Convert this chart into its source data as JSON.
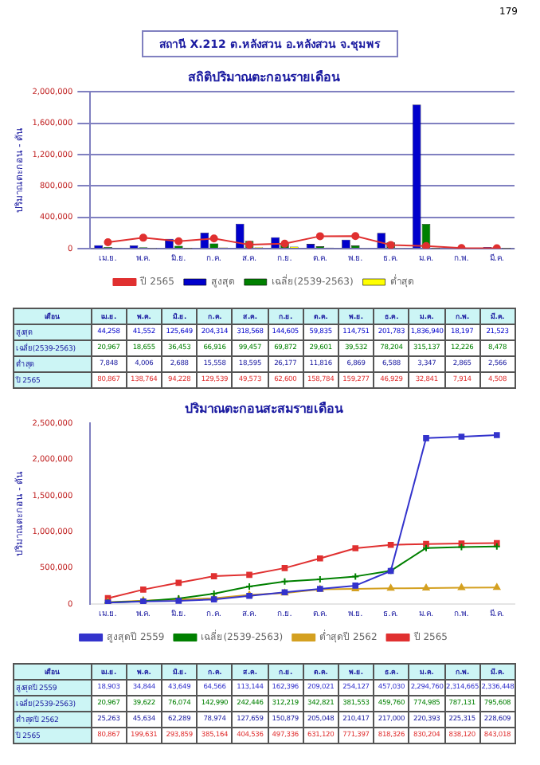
{
  "chart_data": [
    {
      "type": "bar",
      "title": "สถิติปริมาณตะกอนรายเดือน",
      "ylabel": "ปริมาณตะกอน - ตัน",
      "annotations": [
        "179",
        "สถานี X.212 ต.หลังสวน อ.หลังสวน จ.ชุมพร",
        "เดือน"
      ],
      "categories": [
        "เม.ย.",
        "พ.ค.",
        "มิ.ย.",
        "ก.ค.",
        "ส.ค.",
        "ก.ย.",
        "ต.ค.",
        "พ.ย.",
        "ธ.ค.",
        "ม.ค.",
        "ก.พ.",
        "มี.ค."
      ],
      "series": [
        {
          "name": "สูงสุด",
          "color": "#0000cc",
          "values": [
            44258,
            41552,
            125649,
            204314,
            318568,
            144605,
            59835,
            114751,
            201783,
            1836940,
            18197,
            21523
          ],
          "value_labels": [
            "44,258",
            "41,552",
            "125,649",
            "204,314",
            "318,568",
            "144,605",
            "59,835",
            "114,751",
            "201,783",
            "1,836,940",
            "18,197",
            "21,523"
          ]
        },
        {
          "name": "เฉลี่ย(2539-2563)",
          "color": "#008000",
          "values": [
            20967,
            18655,
            36453,
            66916,
            99457,
            69872,
            29601,
            39532,
            78204,
            315137,
            12226,
            8478
          ],
          "value_labels": [
            "20,967",
            "18,655",
            "36,453",
            "66,916",
            "99,457",
            "69,872",
            "29,601",
            "39,532",
            "78,204",
            "315,137",
            "12,226",
            "8,478"
          ]
        },
        {
          "name": "ต่ำสุด",
          "color": "#ffff00",
          "values": [
            7848,
            4006,
            2688,
            15558,
            18595,
            26177,
            11816,
            6869,
            6588,
            3347,
            2865,
            2566
          ],
          "value_labels": [
            "7,848",
            "4,006",
            "2,688",
            "15,558",
            "18,595",
            "26,177",
            "11,816",
            "6,869",
            "6,588",
            "3,347",
            "2,865",
            "2,566"
          ]
        },
        {
          "name": "ปี 2565",
          "type": "line",
          "color": "#e03030",
          "marker": "circle",
          "values": [
            80867,
            138764,
            94228,
            129539,
            49573,
            62600,
            158784,
            159277,
            46929,
            32841,
            7914,
            4508
          ],
          "value_labels": [
            "80,867",
            "138,764",
            "94,228",
            "129,539",
            "49,573",
            "62,600",
            "158,784",
            "159,277",
            "46,929",
            "32,841",
            "7,914",
            "4,508"
          ]
        }
      ],
      "ylim": [
        0,
        2000000
      ],
      "yticks": [
        0,
        {
          "value": 400000,
          "label": "400,000"
        },
        {
          "value": 800000,
          "label": "800,000"
        },
        {
          "value": 1200000,
          "label": "1,200,000"
        },
        {
          "value": 1600000,
          "label": "1,600,000"
        },
        {
          "value": 2000000,
          "label": "2,000,000"
        }
      ],
      "grid": "y",
      "legend": "bottom"
    },
    {
      "type": "line",
      "title": "ปริมาณตะกอนสะสมรายเดือน",
      "ylabel": "ปริมาณตะกอน - ตัน",
      "annotations": [
        "เดือน"
      ],
      "categories": [
        "เม.ย.",
        "พ.ค.",
        "มิ.ย.",
        "ก.ค.",
        "ส.ค.",
        "ก.ย.",
        "ต.ค.",
        "พ.ย.",
        "ธ.ค.",
        "ม.ค.",
        "ก.พ.",
        "มี.ค."
      ],
      "series": [
        {
          "name": "สูงสุดปี 2559",
          "color": "#3333cc",
          "marker": "square",
          "values": [
            18903,
            34844,
            43649,
            64566,
            113144,
            162396,
            209021,
            254127,
            457030,
            2294760,
            2314665,
            2336448
          ],
          "value_labels": [
            "18,903",
            "34,844",
            "43,649",
            "64,566",
            "113,144",
            "162,396",
            "209,021",
            "254,127",
            "457,030",
            "2,294,760",
            "2,314,665",
            "2,336,448"
          ]
        },
        {
          "name": "เฉลี่ย(2539-2563)",
          "color": "#008000",
          "marker": "cross",
          "values": [
            20967,
            39622,
            76074,
            142990,
            242446,
            312219,
            342821,
            381553,
            459760,
            774985,
            787131,
            795608
          ],
          "value_labels": [
            "20,967",
            "39,622",
            "76,074",
            "142,990",
            "242,446",
            "312,219",
            "342,821",
            "381,553",
            "459,760",
            "774,985",
            "787,131",
            "795,608"
          ]
        },
        {
          "name": "ต่ำสุดปี 2562",
          "color": "#d4a020",
          "marker": "triangle",
          "values": [
            25263,
            45634,
            62289,
            78974,
            127659,
            150879,
            205048,
            210417,
            217000,
            220393,
            225315,
            228609
          ],
          "value_labels": [
            "25,263",
            "45,634",
            "62,289",
            "78,974",
            "127,659",
            "150,879",
            "205,048",
            "210,417",
            "217,000",
            "220,393",
            "225,315",
            "228,609"
          ]
        },
        {
          "name": "ปี 2565",
          "color": "#e03030",
          "marker": "square",
          "values": [
            80867,
            199631,
            293859,
            385164,
            404536,
            497336,
            631120,
            771397,
            818326,
            830204,
            838120,
            843018
          ],
          "value_labels": [
            "80,867",
            "199,631",
            "293,859",
            "385,164",
            "404,536",
            "497,336",
            "631,120",
            "771,397",
            "818,326",
            "830,204",
            "838,120",
            "843,018"
          ]
        }
      ],
      "ylim": [
        0,
        2500000
      ],
      "yticks": [
        0,
        {
          "value": 500000,
          "label": "500,000"
        },
        {
          "value": 1000000,
          "label": "1,000,000"
        },
        {
          "value": 1500000,
          "label": "1,500,000"
        },
        {
          "value": 2000000,
          "label": "2,000,000"
        },
        {
          "value": 2500000,
          "label": "2,500,000"
        }
      ],
      "legend": "bottom"
    }
  ]
}
